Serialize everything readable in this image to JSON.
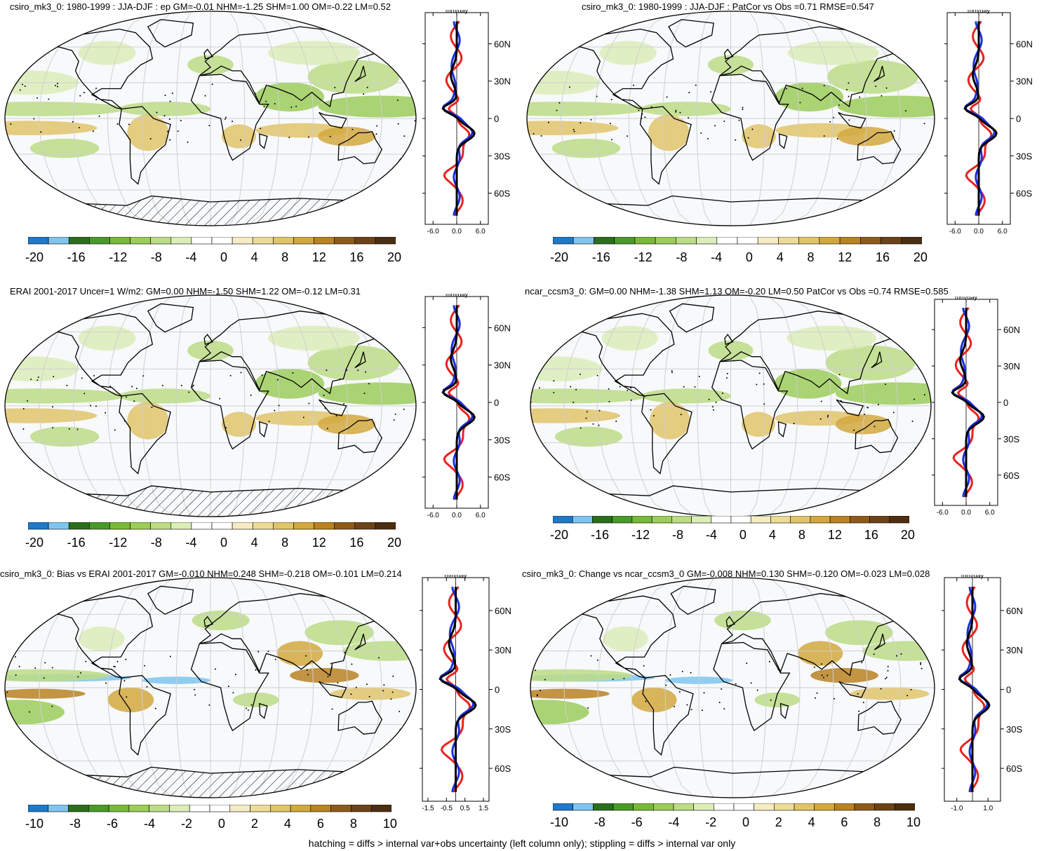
{
  "panels": [
    {
      "title": "csiro_mk3_0: 1980-1999 : JJA-DJF : ep GM=-0.01 NHM=-1.25 SHM=1.00 OM=-0.22 LM=0.52",
      "zonal_unit": "mm/day",
      "zonal_xticks": [
        "-6.0",
        "0.0",
        "6.0"
      ],
      "lat_ticks": [
        "60N",
        "30N",
        "0",
        "30S",
        "60S"
      ],
      "colorbar_labels": [
        "-20",
        "-16",
        "-12",
        "-8",
        "-4",
        "0",
        "4",
        "8",
        "12",
        "16",
        "20"
      ],
      "scale": 20
    },
    {
      "title": "csiro_mk3_0: 1980-1999 : JJA-DJF : PatCor vs Obs =0.71 RMSE=0.547",
      "zonal_unit": "mm/day",
      "zonal_xticks": [
        "-6.0",
        "0.0",
        "6.0"
      ],
      "lat_ticks": [
        "60N",
        "30N",
        "0",
        "30S",
        "60S"
      ],
      "colorbar_labels": [
        "-20",
        "-16",
        "-12",
        "-8",
        "-4",
        "0",
        "4",
        "8",
        "12",
        "16",
        "20"
      ],
      "scale": 20
    },
    {
      "title": "ERAI 2001-2017 Uncer=1 W/m2: GM=0.00 NHM=-1.50 SHM=1.22 OM=-0.12 LM=0.31",
      "zonal_unit": "mm/day",
      "zonal_xticks": [
        "-6.0",
        "0.0",
        "6.0"
      ],
      "lat_ticks": [
        "60N",
        "30N",
        "0",
        "30S",
        "60S"
      ],
      "colorbar_labels": [
        "-20",
        "-16",
        "-12",
        "-8",
        "-4",
        "0",
        "4",
        "8",
        "12",
        "16",
        "20"
      ],
      "scale": 20
    },
    {
      "title": "ncar_ccsm3_0: GM=0.00 NHM=-1.38 SHM=1.13 OM=-0.20 LM=0.50 PatCor vs Obs =0.74 RMSE=0.585",
      "zonal_unit": "mm/day",
      "zonal_xticks": [
        "-6.0",
        "0.0",
        "6.0"
      ],
      "lat_ticks": [
        "60N",
        "30N",
        "0",
        "30S",
        "60S"
      ],
      "colorbar_labels": [
        "-20",
        "-16",
        "-12",
        "-8",
        "-4",
        "0",
        "4",
        "8",
        "12",
        "16",
        "20"
      ],
      "scale": 20
    },
    {
      "title": "csiro_mk3_0: Bias vs ERAI 2001-2017 GM=-0.010 NHM=0.248 SHM=-0.218 OM=-0.101 LM=0.214",
      "zonal_unit": "mm/day",
      "zonal_xticks": [
        "-1.5",
        "-0.5",
        "0.5",
        "1.5"
      ],
      "lat_ticks": [
        "60N",
        "30N",
        "0",
        "30S",
        "60S"
      ],
      "colorbar_labels": [
        "-10",
        "-8",
        "-6",
        "-4",
        "-2",
        "0",
        "2",
        "4",
        "6",
        "8",
        "10"
      ],
      "scale": 10
    },
    {
      "title": "csiro_mk3_0: Change vs ncar_ccsm3_0 GM=-0.008 NHM=0.130 SHM=-0.120 OM=-0.023 LM=0.028",
      "zonal_unit": "mm/day",
      "zonal_xticks": [
        "-1.0",
        "1.0"
      ],
      "lat_ticks": [
        "60N",
        "30N",
        "0",
        "30S",
        "60S"
      ],
      "colorbar_labels": [
        "-10",
        "-8",
        "-6",
        "-4",
        "-2",
        "0",
        "2",
        "4",
        "6",
        "8",
        "10"
      ],
      "scale": 10
    }
  ],
  "footer": "hatching = diffs > internal var+obs uncertainty (left column only); stippling = diffs > internal var only",
  "colors": [
    "#1f78c8",
    "#7fc5ef",
    "#2c6e1e",
    "#4a9a2a",
    "#78b93a",
    "#9ccc5a",
    "#bcdc85",
    "#dcedb8",
    "#ffffff",
    "#ffffff",
    "#f5ecc4",
    "#ecdc98",
    "#e0c46a",
    "#d2a83e",
    "#b98222",
    "#8e5a1c",
    "#6c4318",
    "#4c2e10"
  ],
  "series_colors": {
    "red": "#e8231f",
    "blue": "#1b2fe0",
    "black": "#000000"
  }
}
